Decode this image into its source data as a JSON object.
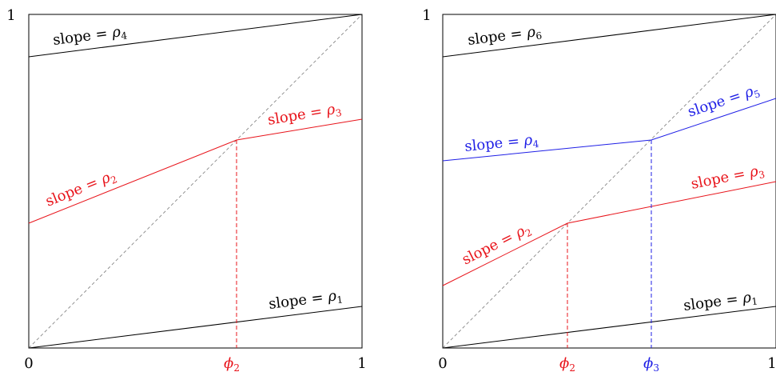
{
  "colors": {
    "black": "#000000",
    "red": "#e8141b",
    "blue": "#1f1fe6",
    "diagonal": "#888888"
  },
  "panels": [
    {
      "axis_labels": {
        "origin": "0",
        "x_end": "1",
        "y_end": "1"
      },
      "curves": [
        {
          "color": "black",
          "points": [
            [
              0,
              0
            ],
            [
              1,
              0.125
            ]
          ],
          "label": {
            "prefix": "slope = ",
            "symbol": "ρ",
            "index": "1"
          }
        },
        {
          "color": "red",
          "points": [
            [
              0,
              0.375
            ],
            [
              0.625,
              0.625
            ],
            [
              1,
              0.6875
            ]
          ],
          "label": {
            "prefix": "slope = ",
            "symbol": "ρ",
            "index": "2"
          },
          "label2": {
            "prefix": "slope = ",
            "symbol": "ρ",
            "index": "3"
          }
        },
        {
          "color": "black",
          "points": [
            [
              0,
              0.875
            ],
            [
              1,
              1
            ]
          ],
          "label": {
            "prefix": "slope = ",
            "symbol": "ρ",
            "index": "4"
          }
        }
      ],
      "fixed_points": [
        {
          "color": "red",
          "x": 0.625,
          "label": {
            "symbol": "ϕ",
            "index": "2"
          }
        }
      ]
    },
    {
      "axis_labels": {
        "origin": "0",
        "x_end": "1",
        "y_end": "1"
      },
      "curves": [
        {
          "color": "black",
          "points": [
            [
              0,
              0
            ],
            [
              1,
              0.125
            ]
          ],
          "label": {
            "prefix": "slope = ",
            "symbol": "ρ",
            "index": "1"
          }
        },
        {
          "color": "red",
          "points": [
            [
              0,
              0.1875
            ],
            [
              0.375,
              0.375
            ],
            [
              1,
              0.5
            ]
          ],
          "label": {
            "prefix": "slope = ",
            "symbol": "ρ",
            "index": "2"
          },
          "label2": {
            "prefix": "slope = ",
            "symbol": "ρ",
            "index": "3"
          }
        },
        {
          "color": "blue",
          "points": [
            [
              0,
              0.5625
            ],
            [
              0.625,
              0.625
            ],
            [
              1,
              0.75
            ]
          ],
          "label": {
            "prefix": "slope = ",
            "symbol": "ρ",
            "index": "4"
          },
          "label2": {
            "prefix": "slope = ",
            "symbol": "ρ",
            "index": "5"
          }
        },
        {
          "color": "black",
          "points": [
            [
              0,
              0.875
            ],
            [
              1,
              1
            ]
          ],
          "label": {
            "prefix": "slope = ",
            "symbol": "ρ",
            "index": "6"
          }
        }
      ],
      "fixed_points": [
        {
          "color": "red",
          "x": 0.375,
          "label": {
            "symbol": "ϕ",
            "index": "2"
          }
        },
        {
          "color": "blue",
          "x": 0.625,
          "label": {
            "symbol": "ϕ",
            "index": "3"
          }
        }
      ]
    }
  ]
}
